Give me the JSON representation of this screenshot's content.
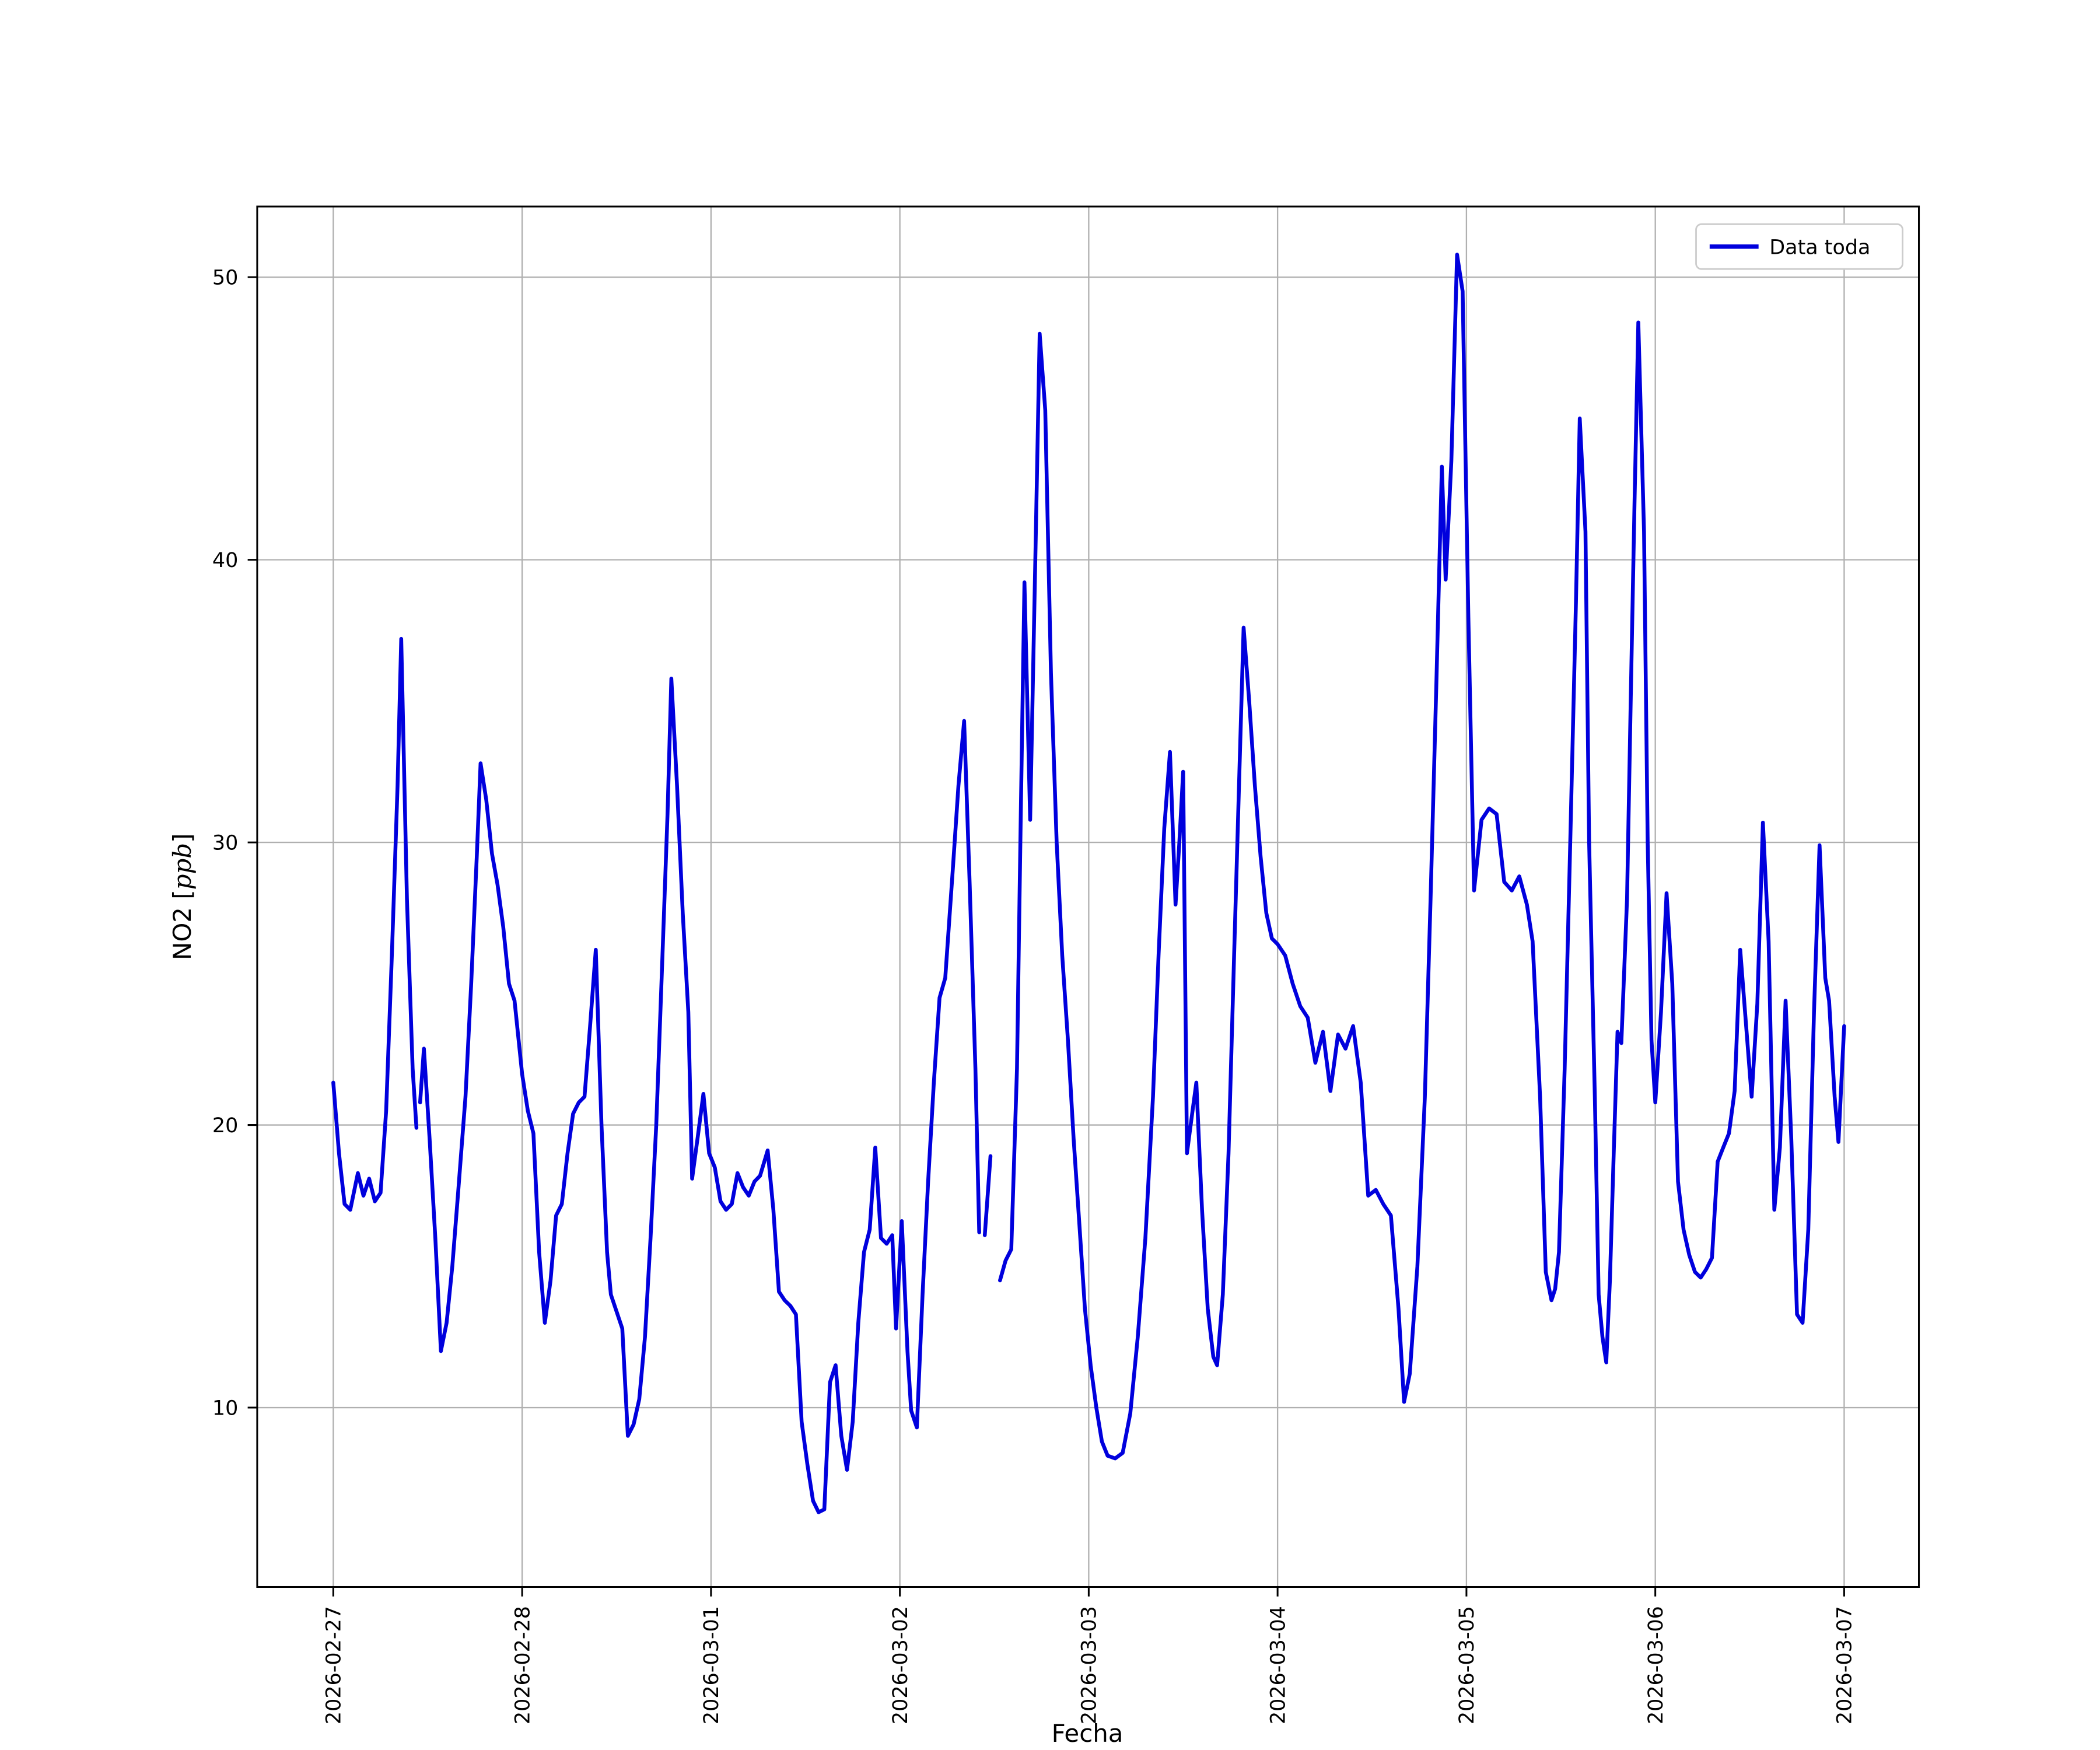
{
  "figure": {
    "background": "#ffffff",
    "grid_color": "#b0b0b0",
    "spine_color": "#000000",
    "legend_border_color": "#cccccc"
  },
  "chart_data": {
    "type": "line",
    "title": "",
    "xlabel": "Fecha",
    "ylabel": "NO2 [ppb]",
    "ylabel_parts": {
      "prefix": "NO2 [",
      "math_italic": "ppb",
      "suffix": "]"
    },
    "grid": true,
    "legend": {
      "position": "upper right",
      "entries": [
        {
          "label": "Data toda",
          "color": "#0000dd"
        }
      ]
    },
    "x_axis": {
      "tick_labels": [
        "2026-02-27",
        "2026-02-28",
        "2026-03-01",
        "2026-03-02",
        "2026-03-03",
        "2026-03-04",
        "2026-03-05",
        "2026-03-06",
        "2026-03-07"
      ],
      "tick_positions_days": [
        0,
        1,
        2,
        3,
        4,
        5,
        6,
        7,
        8
      ],
      "tick_label_rotation_deg": 90
    },
    "y_axis": {
      "ticks": [
        10,
        20,
        30,
        40,
        50
      ],
      "limits": [
        3.6,
        52.6
      ]
    },
    "series": [
      {
        "name": "Data toda",
        "color": "#0000dd",
        "units_x": "days since 2026-02-27 00:00",
        "units_y": "ppb",
        "segments": [
          [
            [
              0,
              21.5
            ],
            [
              0.03,
              19
            ],
            [
              0.06,
              17.2
            ],
            [
              0.09,
              17
            ],
            [
              0.13,
              18.3
            ],
            [
              0.16,
              17.5
            ],
            [
              0.19,
              18.1
            ],
            [
              0.22,
              17.3
            ],
            [
              0.25,
              17.6
            ],
            [
              0.28,
              20.5
            ],
            [
              0.31,
              26
            ],
            [
              0.34,
              32
            ],
            [
              0.36,
              37.2
            ],
            [
              0.39,
              28
            ],
            [
              0.42,
              22
            ],
            [
              0.44,
              19.9
            ]
          ],
          [
            [
              0.46,
              20.8
            ],
            [
              0.48,
              22.7
            ],
            [
              0.51,
              19.5
            ],
            [
              0.54,
              16
            ],
            [
              0.57,
              12
            ],
            [
              0.6,
              13
            ],
            [
              0.63,
              15
            ],
            [
              0.66,
              17.5
            ],
            [
              0.7,
              21
            ],
            [
              0.73,
              25
            ],
            [
              0.76,
              29.5
            ],
            [
              0.78,
              32.8
            ],
            [
              0.81,
              31.5
            ],
            [
              0.84,
              29.6
            ],
            [
              0.87,
              28.5
            ],
            [
              0.9,
              27
            ],
            [
              0.93,
              25
            ],
            [
              0.96,
              24.4
            ],
            [
              1,
              21.8
            ],
            [
              1.03,
              20.5
            ],
            [
              1.06,
              19.7
            ],
            [
              1.09,
              15.5
            ],
            [
              1.12,
              13
            ],
            [
              1.15,
              14.5
            ],
            [
              1.18,
              16.8
            ],
            [
              1.21,
              17.2
            ],
            [
              1.24,
              19
            ],
            [
              1.27,
              20.4
            ],
            [
              1.3,
              20.8
            ],
            [
              1.33,
              21
            ],
            [
              1.36,
              23.5
            ],
            [
              1.39,
              26.2
            ],
            [
              1.42,
              20
            ],
            [
              1.45,
              15.5
            ],
            [
              1.47,
              14
            ],
            [
              1.5,
              13.4
            ],
            [
              1.53,
              12.8
            ],
            [
              1.56,
              9
            ],
            [
              1.59,
              9.4
            ],
            [
              1.62,
              10.3
            ],
            [
              1.65,
              12.5
            ],
            [
              1.68,
              16
            ],
            [
              1.71,
              20
            ],
            [
              1.74,
              25.5
            ],
            [
              1.77,
              31
            ],
            [
              1.79,
              35.8
            ],
            [
              1.82,
              32
            ],
            [
              1.85,
              27.5
            ],
            [
              1.88,
              24
            ],
            [
              1.9,
              18.1
            ],
            [
              1.93,
              19.6
            ],
            [
              1.96,
              21.1
            ],
            [
              1.99,
              19
            ],
            [
              2.02,
              18.5
            ],
            [
              2.05,
              17.3
            ],
            [
              2.08,
              17
            ],
            [
              2.11,
              17.2
            ],
            [
              2.14,
              18.3
            ],
            [
              2.17,
              17.8
            ],
            [
              2.2,
              17.5
            ],
            [
              2.23,
              18
            ],
            [
              2.26,
              18.2
            ],
            [
              2.3,
              19.1
            ],
            [
              2.33,
              17
            ],
            [
              2.36,
              14.1
            ],
            [
              2.39,
              13.8
            ],
            [
              2.42,
              13.6
            ],
            [
              2.45,
              13.3
            ],
            [
              2.48,
              9.5
            ],
            [
              2.51,
              8
            ],
            [
              2.54,
              6.7
            ],
            [
              2.57,
              6.3
            ],
            [
              2.6,
              6.4
            ],
            [
              2.63,
              10.9
            ],
            [
              2.66,
              11.5
            ],
            [
              2.69,
              9
            ],
            [
              2.72,
              7.8
            ],
            [
              2.75,
              9.5
            ],
            [
              2.78,
              13
            ],
            [
              2.81,
              15.5
            ],
            [
              2.84,
              16.3
            ],
            [
              2.87,
              19.2
            ],
            [
              2.9,
              16
            ],
            [
              2.93,
              15.8
            ],
            [
              2.96,
              16.1
            ],
            [
              2.98,
              12.8
            ],
            [
              3.01,
              16.6
            ],
            [
              3.04,
              12
            ],
            [
              3.06,
              9.9
            ],
            [
              3.09,
              9.3
            ],
            [
              3.12,
              14
            ],
            [
              3.15,
              18
            ],
            [
              3.18,
              21.5
            ],
            [
              3.21,
              24.5
            ],
            [
              3.24,
              25.2
            ],
            [
              3.28,
              29
            ],
            [
              3.31,
              32
            ],
            [
              3.34,
              34.3
            ],
            [
              3.37,
              28.5
            ],
            [
              3.4,
              22
            ],
            [
              3.42,
              16.2
            ]
          ],
          [
            [
              3.45,
              16.1
            ],
            [
              3.48,
              18.9
            ]
          ],
          [
            [
              3.53,
              14.5
            ],
            [
              3.56,
              15.2
            ],
            [
              3.59,
              15.6
            ],
            [
              3.62,
              22
            ],
            [
              3.64,
              31
            ],
            [
              3.66,
              39.2
            ],
            [
              3.69,
              30.8
            ],
            [
              3.72,
              41
            ],
            [
              3.74,
              48
            ],
            [
              3.77,
              45.3
            ],
            [
              3.8,
              36
            ],
            [
              3.83,
              30
            ],
            [
              3.86,
              26
            ],
            [
              3.89,
              23
            ],
            [
              3.92,
              19.5
            ],
            [
              3.95,
              16.5
            ],
            [
              3.98,
              13.5
            ],
            [
              4.01,
              11.5
            ],
            [
              4.04,
              10
            ],
            [
              4.07,
              8.8
            ],
            [
              4.1,
              8.3
            ],
            [
              4.14,
              8.2
            ],
            [
              4.18,
              8.4
            ],
            [
              4.22,
              9.8
            ],
            [
              4.26,
              12.5
            ],
            [
              4.3,
              16
            ],
            [
              4.34,
              21
            ],
            [
              4.37,
              26
            ],
            [
              4.4,
              30.5
            ],
            [
              4.43,
              33.2
            ],
            [
              4.46,
              27.8
            ],
            [
              4.48,
              30
            ],
            [
              4.5,
              32.5
            ],
            [
              4.52,
              19
            ],
            [
              4.55,
              20.5
            ],
            [
              4.57,
              21.5
            ],
            [
              4.6,
              17
            ],
            [
              4.63,
              13.5
            ],
            [
              4.66,
              11.8
            ],
            [
              4.68,
              11.5
            ],
            [
              4.71,
              14
            ],
            [
              4.74,
              19
            ],
            [
              4.77,
              26
            ],
            [
              4.8,
              33
            ],
            [
              4.82,
              37.6
            ],
            [
              4.85,
              35
            ],
            [
              4.88,
              32
            ],
            [
              4.91,
              29.5
            ],
            [
              4.94,
              27.5
            ],
            [
              4.97,
              26.6
            ],
            [
              5,
              26.4
            ],
            [
              5.04,
              26
            ],
            [
              5.08,
              25
            ],
            [
              5.12,
              24.2
            ],
            [
              5.16,
              23.8
            ],
            [
              5.2,
              22.2
            ],
            [
              5.24,
              23.3
            ],
            [
              5.28,
              21.2
            ],
            [
              5.32,
              23.2
            ],
            [
              5.36,
              22.7
            ],
            [
              5.4,
              23.5
            ],
            [
              5.44,
              21.5
            ],
            [
              5.48,
              17.5
            ],
            [
              5.52,
              17.7
            ],
            [
              5.56,
              17.2
            ],
            [
              5.6,
              16.8
            ],
            [
              5.64,
              13.5
            ],
            [
              5.67,
              10.2
            ],
            [
              5.7,
              11.2
            ],
            [
              5.74,
              15
            ],
            [
              5.78,
              21
            ],
            [
              5.81,
              28
            ],
            [
              5.84,
              35.5
            ],
            [
              5.87,
              43.3
            ],
            [
              5.89,
              39.3
            ],
            [
              5.92,
              43.5
            ],
            [
              5.95,
              50.8
            ],
            [
              5.98,
              49.5
            ],
            [
              6.01,
              38
            ],
            [
              6.04,
              28.3
            ],
            [
              6.08,
              30.8
            ],
            [
              6.12,
              31.2
            ],
            [
              6.16,
              31
            ],
            [
              6.2,
              28.6
            ],
            [
              6.24,
              28.3
            ],
            [
              6.28,
              28.8
            ],
            [
              6.32,
              27.8
            ],
            [
              6.35,
              26.5
            ],
            [
              6.39,
              21
            ],
            [
              6.42,
              14.8
            ],
            [
              6.45,
              13.8
            ],
            [
              6.47,
              14.2
            ],
            [
              6.49,
              15.5
            ],
            [
              6.52,
              22
            ],
            [
              6.55,
              30
            ],
            [
              6.58,
              38.5
            ],
            [
              6.6,
              45
            ],
            [
              6.63,
              41
            ],
            [
              6.65,
              30
            ],
            [
              6.68,
              21
            ],
            [
              6.7,
              14
            ],
            [
              6.72,
              12.5
            ],
            [
              6.74,
              11.6
            ],
            [
              6.76,
              14.5
            ],
            [
              6.78,
              19
            ],
            [
              6.8,
              23.3
            ],
            [
              6.82,
              22.9
            ],
            [
              6.85,
              28
            ],
            [
              6.87,
              35
            ],
            [
              6.89,
              42
            ],
            [
              6.91,
              48.4
            ],
            [
              6.94,
              41
            ],
            [
              6.96,
              30
            ],
            [
              6.98,
              23
            ],
            [
              7,
              20.8
            ],
            [
              7.03,
              24
            ],
            [
              7.06,
              28.2
            ],
            [
              7.09,
              25
            ],
            [
              7.12,
              18
            ],
            [
              7.15,
              16.3
            ],
            [
              7.18,
              15.4
            ],
            [
              7.21,
              14.8
            ],
            [
              7.24,
              14.6
            ],
            [
              7.27,
              14.9
            ],
            [
              7.3,
              15.3
            ],
            [
              7.33,
              18.7
            ],
            [
              7.36,
              19.2
            ],
            [
              7.39,
              19.7
            ],
            [
              7.42,
              21.2
            ],
            [
              7.45,
              26.2
            ],
            [
              7.48,
              23.6
            ],
            [
              7.51,
              21
            ],
            [
              7.54,
              24.3
            ],
            [
              7.57,
              30.7
            ],
            [
              7.6,
              26.5
            ],
            [
              7.63,
              17
            ],
            [
              7.66,
              19.2
            ],
            [
              7.69,
              24.4
            ],
            [
              7.72,
              19.5
            ],
            [
              7.75,
              13.3
            ],
            [
              7.78,
              13
            ],
            [
              7.81,
              16.3
            ],
            [
              7.84,
              24
            ],
            [
              7.87,
              29.9
            ],
            [
              7.9,
              25.2
            ],
            [
              7.92,
              24.4
            ],
            [
              7.95,
              21
            ],
            [
              7.97,
              19.4
            ],
            [
              8,
              23.5
            ]
          ]
        ]
      }
    ]
  }
}
